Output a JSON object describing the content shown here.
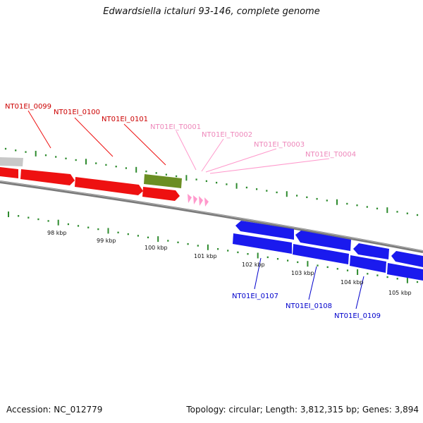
{
  "title": "Edwardsiella ictaluri 93-146, complete genome",
  "footer": {
    "accession": "Accession: NC_012779",
    "topology": "Topology: circular; Length: 3,812,315 bp; Genes: 3,894"
  },
  "ruler": {
    "labels": [
      "98 kbp",
      "99 kbp",
      "100 kbp",
      "101 kbp",
      "102 kbp",
      "103 kbp",
      "104 kbp",
      "105 kbp"
    ]
  },
  "colors": {
    "forward_cds": "#ee1111",
    "reverse_cds": "#1a1aee",
    "forward_label": "#cc0000",
    "reverse_label": "#0000cc",
    "trna": "#ff99cc",
    "trna_label": "#ee88bb",
    "misc_feature": "#6b8e23",
    "other_feature": "#c8c8c8",
    "backbone": "#777777",
    "tick": "#2e8b2e"
  },
  "genes": {
    "forward": [
      "NT01EI_0099",
      "NT01EI_0100",
      "NT01EI_0101"
    ],
    "trna": [
      "NT01EI_T0001",
      "NT01EI_T0002",
      "NT01EI_T0003",
      "NT01EI_T0004"
    ],
    "reverse": [
      "NT01EI_0107",
      "NT01EI_0108",
      "NT01EI_0109"
    ]
  }
}
